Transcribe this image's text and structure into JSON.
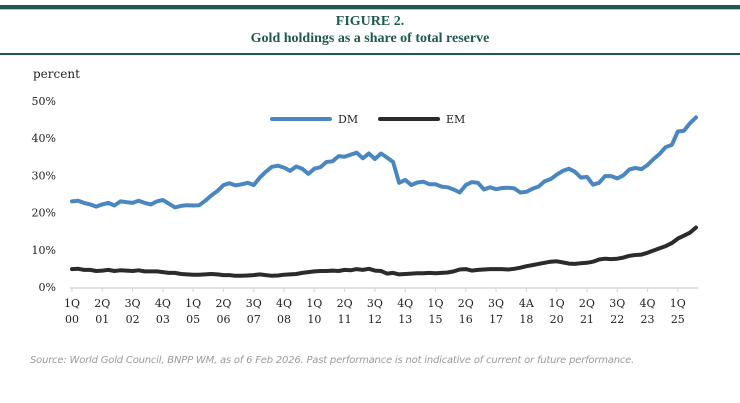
{
  "header": {
    "figure_label": "FIGURE 2.",
    "title": "Gold holdings as a share of total reserve"
  },
  "footer": {
    "source": "Source: World Gold Council, BNPP WM, as of 6 Feb 2026. Past performance is not indicative of current or future performance."
  },
  "colors": {
    "brand": "#1f5a4f",
    "dm": "#4a86c0",
    "em": "#2b2b2b",
    "axis": "#d9d9d9"
  },
  "chart_data": {
    "type": "line",
    "title": "Gold holdings as a share of total reserve",
    "xlabel": "",
    "ylabel": "percent",
    "ylim": [
      0,
      50
    ],
    "yticks": [
      0,
      10,
      20,
      30,
      40,
      50
    ],
    "ytick_labels": [
      "0%",
      "10%",
      "20%",
      "30%",
      "40%",
      "50%"
    ],
    "grid": false,
    "legend": "top-center",
    "x_start": "1Q00",
    "x_end": "4Q25",
    "frequency": "quarterly",
    "xtick_labels": [
      {
        "q": "1Q",
        "y": "00",
        "index": 0
      },
      {
        "q": "2Q",
        "y": "01",
        "index": 5
      },
      {
        "q": "3Q",
        "y": "02",
        "index": 10
      },
      {
        "q": "4Q",
        "y": "03",
        "index": 15
      },
      {
        "q": "1Q",
        "y": "05",
        "index": 20
      },
      {
        "q": "2Q",
        "y": "06",
        "index": 25
      },
      {
        "q": "3Q",
        "y": "07",
        "index": 30
      },
      {
        "q": "4Q",
        "y": "08",
        "index": 35
      },
      {
        "q": "1Q",
        "y": "10",
        "index": 40
      },
      {
        "q": "2Q",
        "y": "11",
        "index": 45
      },
      {
        "q": "3Q",
        "y": "12",
        "index": 50
      },
      {
        "q": "4Q",
        "y": "13",
        "index": 55
      },
      {
        "q": "1Q",
        "y": "15",
        "index": 60
      },
      {
        "q": "2Q",
        "y": "16",
        "index": 65
      },
      {
        "q": "3Q",
        "y": "17",
        "index": 70
      },
      {
        "q": "4A",
        "y": "18",
        "index": 75
      },
      {
        "q": "1Q",
        "y": "20",
        "index": 80
      },
      {
        "q": "2Q",
        "y": "21",
        "index": 85
      },
      {
        "q": "3Q",
        "y": "22",
        "index": 90
      },
      {
        "q": "4Q",
        "y": "23",
        "index": 95
      },
      {
        "q": "1Q",
        "y": "25",
        "index": 100
      }
    ],
    "n_points": 104,
    "series": [
      {
        "name": "DM",
        "color": "#4a86c0",
        "values": [
          23.0,
          23.2,
          22.6,
          22.2,
          21.6,
          22.2,
          22.6,
          21.9,
          23.0,
          22.8,
          22.6,
          23.2,
          22.6,
          22.2,
          23.0,
          23.4,
          22.4,
          21.4,
          21.8,
          22.0,
          21.9,
          22.0,
          23.2,
          24.6,
          25.8,
          27.4,
          27.9,
          27.3,
          27.6,
          28.0,
          27.4,
          29.4,
          31.0,
          32.3,
          32.6,
          32.1,
          31.2,
          32.4,
          31.8,
          30.4,
          31.8,
          32.2,
          33.6,
          33.8,
          35.2,
          35.0,
          35.6,
          36.1,
          34.6,
          35.9,
          34.4,
          35.9,
          34.8,
          33.6,
          28.0,
          28.8,
          27.4,
          28.1,
          28.3,
          27.6,
          27.6,
          27.0,
          26.8,
          26.2,
          25.4,
          27.4,
          28.2,
          28.0,
          26.2,
          26.8,
          26.3,
          26.6,
          26.7,
          26.5,
          25.4,
          25.6,
          26.4,
          27.0,
          28.4,
          29.0,
          30.2,
          31.2,
          31.8,
          31.0,
          29.4,
          29.6,
          27.5,
          28.0,
          29.8,
          29.8,
          29.2,
          30.0,
          31.6,
          32.0,
          31.7,
          32.8,
          34.4,
          35.8,
          37.6,
          38.2,
          41.8,
          42.0,
          44.0,
          45.6
        ]
      },
      {
        "name": "EM",
        "color": "#2b2b2b",
        "values": [
          4.8,
          4.9,
          4.6,
          4.6,
          4.3,
          4.4,
          4.6,
          4.3,
          4.5,
          4.4,
          4.3,
          4.5,
          4.2,
          4.2,
          4.2,
          4.0,
          3.8,
          3.8,
          3.5,
          3.4,
          3.3,
          3.3,
          3.4,
          3.5,
          3.4,
          3.2,
          3.2,
          3.0,
          3.0,
          3.1,
          3.2,
          3.4,
          3.2,
          3.0,
          3.1,
          3.3,
          3.4,
          3.5,
          3.8,
          4.0,
          4.2,
          4.3,
          4.3,
          4.4,
          4.3,
          4.6,
          4.5,
          4.8,
          4.6,
          4.9,
          4.4,
          4.3,
          3.6,
          3.8,
          3.4,
          3.5,
          3.6,
          3.7,
          3.7,
          3.8,
          3.7,
          3.8,
          3.9,
          4.2,
          4.7,
          4.8,
          4.4,
          4.6,
          4.7,
          4.8,
          4.8,
          4.8,
          4.7,
          4.9,
          5.2,
          5.6,
          5.9,
          6.2,
          6.5,
          6.8,
          6.9,
          6.6,
          6.3,
          6.2,
          6.4,
          6.5,
          6.8,
          7.4,
          7.6,
          7.5,
          7.6,
          7.9,
          8.4,
          8.6,
          8.7,
          9.2,
          9.8,
          10.4,
          11.0,
          11.8,
          13.0,
          13.8,
          14.6,
          16.0
        ]
      }
    ]
  }
}
